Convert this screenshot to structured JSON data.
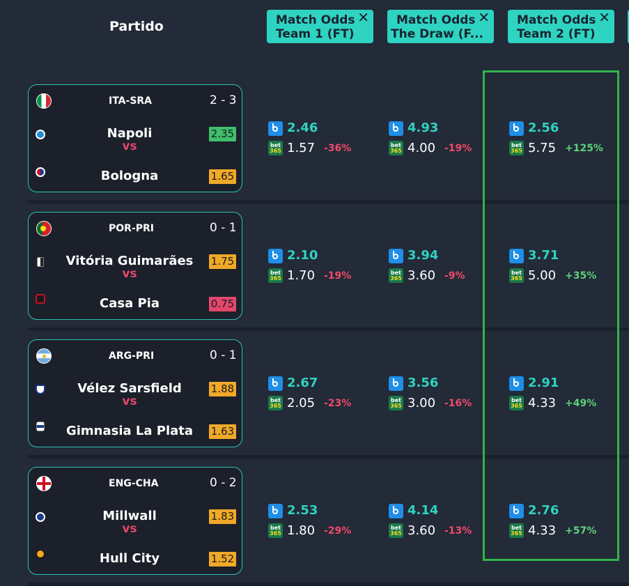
{
  "header": {
    "partido_label": "Partido",
    "columns": [
      {
        "line1": "Match Odds",
        "line2": "Team 1 (FT)",
        "close": "✕"
      },
      {
        "line1": "Match Odds",
        "line2": "The Draw (F...",
        "close": "✕"
      },
      {
        "line1": "Match Odds",
        "line2": "Team 2 (FT)",
        "close": "✕"
      }
    ]
  },
  "bookmakers": {
    "primary_icon": "b-logo-icon",
    "secondary_icon": "bet365-icon",
    "secondary_text1": "bet",
    "secondary_text2": "365"
  },
  "matches": [
    {
      "league": "ITA-SRA",
      "score": "2 - 3",
      "flag": "italy-flag",
      "team1": {
        "name": "Napoli",
        "odd": "2.35",
        "odd_color": "#3fbf6b"
      },
      "vs": "vs",
      "team2": {
        "name": "Bologna",
        "odd": "1.65",
        "odd_color": "#f0a928"
      },
      "odds": [
        {
          "best": "2.46",
          "other": "1.57",
          "diff": "-36%",
          "sign": "neg"
        },
        {
          "best": "4.93",
          "other": "4.00",
          "diff": "-19%",
          "sign": "neg"
        },
        {
          "best": "2.56",
          "other": "5.75",
          "diff": "+125%",
          "sign": "pos"
        }
      ]
    },
    {
      "league": "POR-PRI",
      "score": "0 - 1",
      "flag": "portugal-flag",
      "team1": {
        "name": "Vitória Guimarães",
        "odd": "1.75",
        "odd_color": "#f0a928"
      },
      "vs": "vs",
      "team2": {
        "name": "Casa Pia",
        "odd": "0.75",
        "odd_color": "#e2476c"
      },
      "odds": [
        {
          "best": "2.10",
          "other": "1.70",
          "diff": "-19%",
          "sign": "neg"
        },
        {
          "best": "3.94",
          "other": "3.60",
          "diff": "-9%",
          "sign": "neg"
        },
        {
          "best": "3.71",
          "other": "5.00",
          "diff": "+35%",
          "sign": "pos"
        }
      ]
    },
    {
      "league": "ARG-PRI",
      "score": "0 - 1",
      "flag": "argentina-flag",
      "team1": {
        "name": "Vélez Sarsfield",
        "odd": "1.88",
        "odd_color": "#f0a928"
      },
      "vs": "vs",
      "team2": {
        "name": "Gimnasia La Plata",
        "odd": "1.63",
        "odd_color": "#f0a928"
      },
      "odds": [
        {
          "best": "2.67",
          "other": "2.05",
          "diff": "-23%",
          "sign": "neg"
        },
        {
          "best": "3.56",
          "other": "3.00",
          "diff": "-16%",
          "sign": "neg"
        },
        {
          "best": "2.91",
          "other": "4.33",
          "diff": "+49%",
          "sign": "pos"
        }
      ]
    },
    {
      "league": "ENG-CHA",
      "score": "0 - 2",
      "flag": "england-flag",
      "team1": {
        "name": "Millwall",
        "odd": "1.83",
        "odd_color": "#f0a928"
      },
      "vs": "vs",
      "team2": {
        "name": "Hull City",
        "odd": "1.52",
        "odd_color": "#f0a928"
      },
      "odds": [
        {
          "best": "2.53",
          "other": "1.80",
          "diff": "-29%",
          "sign": "neg"
        },
        {
          "best": "4.14",
          "other": "3.60",
          "diff": "-13%",
          "sign": "neg"
        },
        {
          "best": "2.76",
          "other": "4.33",
          "diff": "+57%",
          "sign": "pos"
        }
      ]
    }
  ],
  "colors": {
    "accent": "#2ed3c1",
    "highlight": "#2eb54a",
    "negative": "#ef4a6a",
    "positive": "#5bd37a",
    "vs": "#e2476c"
  }
}
